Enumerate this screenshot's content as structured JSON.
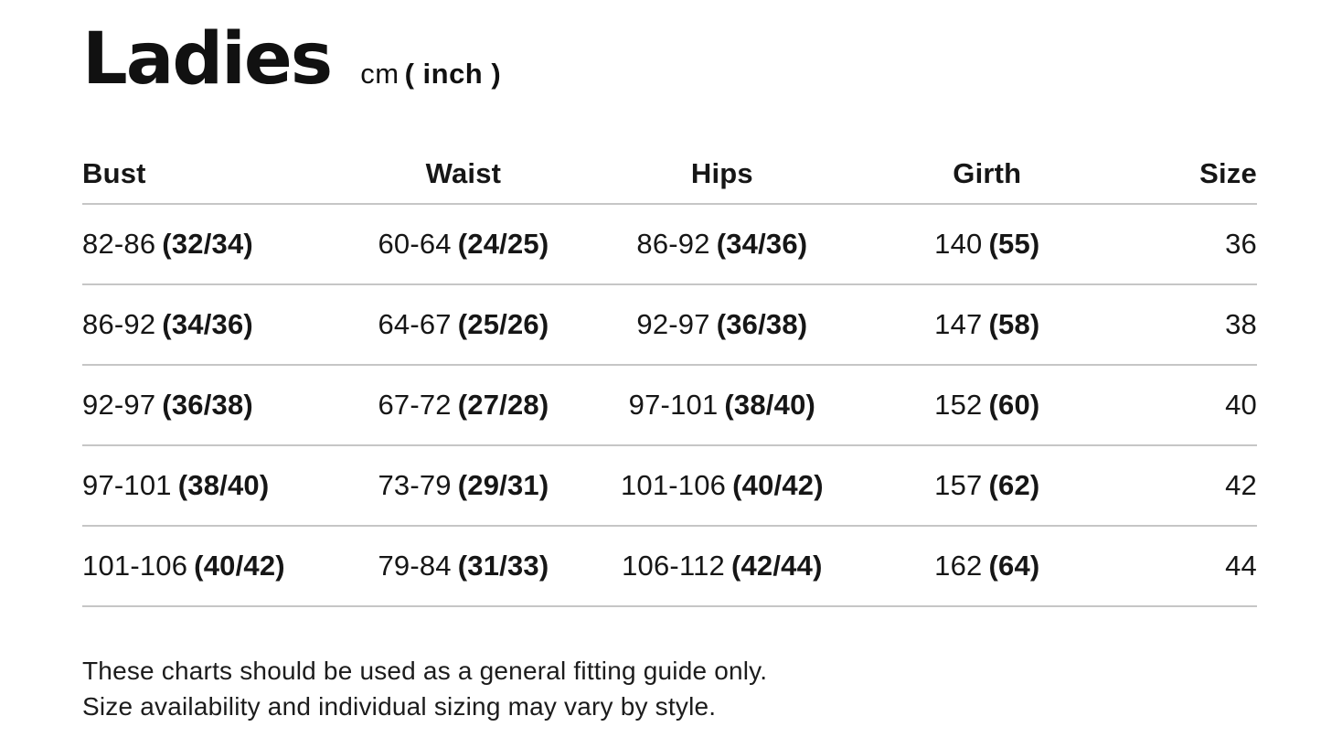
{
  "page": {
    "title": "Ladies",
    "unit_cm": "cm",
    "unit_inch": "( inch )"
  },
  "table": {
    "headers": [
      "Bust",
      "Waist",
      "Hips",
      "Girth",
      "Size"
    ],
    "rows": [
      {
        "bust_cm": "82-86",
        "bust_in": "(32/34)",
        "waist_cm": "60-64",
        "waist_in": "(24/25)",
        "hips_cm": "86-92",
        "hips_in": "(34/36)",
        "girth_cm": "140",
        "girth_in": "(55)",
        "size": "36"
      },
      {
        "bust_cm": "86-92",
        "bust_in": "(34/36)",
        "waist_cm": "64-67",
        "waist_in": "(25/26)",
        "hips_cm": "92-97",
        "hips_in": "(36/38)",
        "girth_cm": "147",
        "girth_in": "(58)",
        "size": "38"
      },
      {
        "bust_cm": "92-97",
        "bust_in": "(36/38)",
        "waist_cm": "67-72",
        "waist_in": "(27/28)",
        "hips_cm": "97-101",
        "hips_in": "(38/40)",
        "girth_cm": "152",
        "girth_in": "(60)",
        "size": "40"
      },
      {
        "bust_cm": "97-101",
        "bust_in": "(38/40)",
        "waist_cm": "73-79",
        "waist_in": "(29/31)",
        "hips_cm": "101-106",
        "hips_in": "(40/42)",
        "girth_cm": "157",
        "girth_in": "(62)",
        "size": "42"
      },
      {
        "bust_cm": "101-106",
        "bust_in": "(40/42)",
        "waist_cm": "79-84",
        "waist_in": "(31/33)",
        "hips_cm": "106-112",
        "hips_in": "(42/44)",
        "girth_cm": "162",
        "girth_in": "(64)",
        "size": "44"
      }
    ]
  },
  "footer": {
    "line1": "These charts should be used as a general fitting guide only.",
    "line2": "Size availability and individual sizing may vary by style."
  },
  "colors": {
    "text": "#161616",
    "divider": "#c6c6c6",
    "background": "#ffffff"
  }
}
